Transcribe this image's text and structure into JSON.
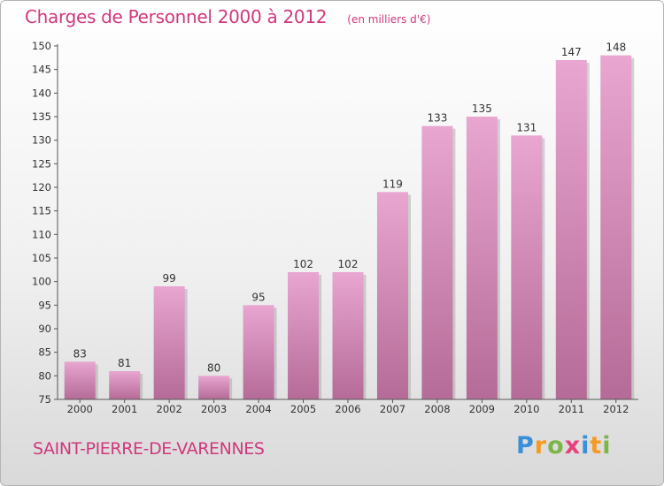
{
  "title": "Charges de Personnel 2000 à 2012",
  "subtitle": "(en milliers d'€)",
  "commune": "SAINT-PIERRE-DE-VARENNES",
  "brand": {
    "letters": [
      "P",
      "r",
      "o",
      "x",
      "i",
      "t",
      "i"
    ],
    "colors": [
      "#3a8fd8",
      "#f39b22",
      "#7ab648",
      "#e8407a",
      "#3a8fd8",
      "#f39b22",
      "#7ab648"
    ]
  },
  "colors": {
    "bar_top": "#e8a6d0",
    "bar_bottom": "#b56b97",
    "accent": "#d0387e"
  },
  "chart_data": {
    "type": "bar",
    "categories": [
      "2000",
      "2001",
      "2002",
      "2003",
      "2004",
      "2005",
      "2006",
      "2007",
      "2008",
      "2009",
      "2010",
      "2011",
      "2012"
    ],
    "values": [
      83,
      81,
      99,
      80,
      95,
      102,
      102,
      119,
      133,
      135,
      131,
      147,
      148
    ],
    "ylim": [
      75,
      150
    ],
    "yticks": [
      75,
      80,
      85,
      90,
      95,
      100,
      105,
      110,
      115,
      120,
      125,
      130,
      135,
      140,
      145,
      150
    ],
    "grid": false
  }
}
